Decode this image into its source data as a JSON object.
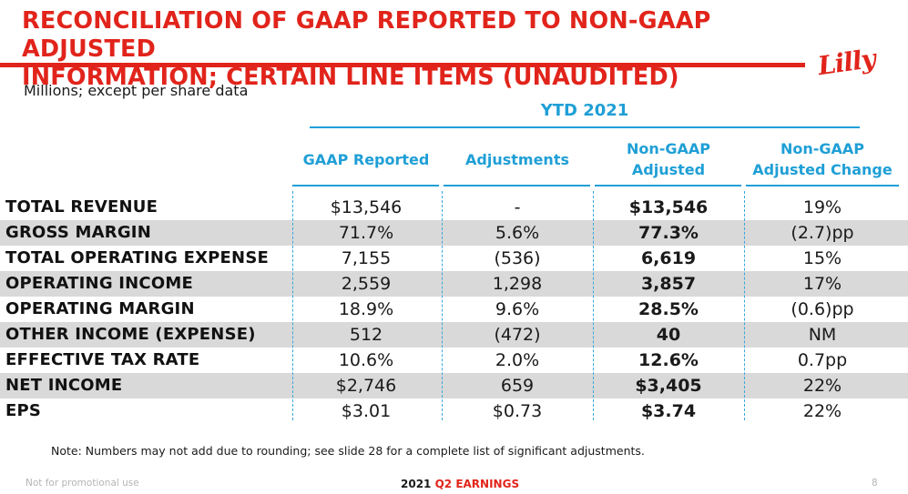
{
  "header": {
    "title_line1": "RECONCILIATION OF GAAP REPORTED TO NON-GAAP ADJUSTED",
    "title_line2": "INFORMATION; CERTAIN LINE ITEMS (UNAUDITED)",
    "logo_text": "Lilly",
    "accent_color": "#e1241b"
  },
  "units_note": "Millions; except per share data",
  "period_label": "YTD 2021",
  "columns": [
    "GAAP Reported",
    "Adjustments",
    "Non-GAAP\nAdjusted",
    "Non-GAAP\nAdjusted Change"
  ],
  "rows": [
    {
      "label": "TOTAL REVENUE",
      "gaap": "$13,546",
      "adj": "-",
      "nongaap": "$13,546",
      "change": "19%"
    },
    {
      "label": "GROSS MARGIN",
      "gaap": "71.7%",
      "adj": "5.6%",
      "nongaap": "77.3%",
      "change": "(2.7)pp"
    },
    {
      "label": "TOTAL OPERATING EXPENSE",
      "gaap": "7,155",
      "adj": "(536)",
      "nongaap": "6,619",
      "change": "15%"
    },
    {
      "label": "OPERATING INCOME",
      "gaap": "2,559",
      "adj": "1,298",
      "nongaap": "3,857",
      "change": "17%"
    },
    {
      "label": "OPERATING MARGIN",
      "gaap": "18.9%",
      "adj": "9.6%",
      "nongaap": "28.5%",
      "change": "(0.6)pp"
    },
    {
      "label": "OTHER INCOME (EXPENSE)",
      "gaap": "512",
      "adj": "(472)",
      "nongaap": "40",
      "change": "NM"
    },
    {
      "label": "EFFECTIVE TAX RATE",
      "gaap": "10.6%",
      "adj": "2.0%",
      "nongaap": "12.6%",
      "change": "0.7pp"
    },
    {
      "label": "NET INCOME",
      "gaap": "$2,746",
      "adj": "659",
      "nongaap": "$3,405",
      "change": "22%"
    },
    {
      "label": "EPS",
      "gaap": "$3.01",
      "adj": "$0.73",
      "nongaap": "$3.74",
      "change": "22%"
    }
  ],
  "note": "Note: Numbers may not add due to rounding; see slide 28 for a complete list of significant adjustments.",
  "footer": {
    "disclaimer": "Not for promotional use",
    "event_prefix": "2021",
    "event_accent": "Q2 EARNINGS",
    "page_number": "8"
  }
}
